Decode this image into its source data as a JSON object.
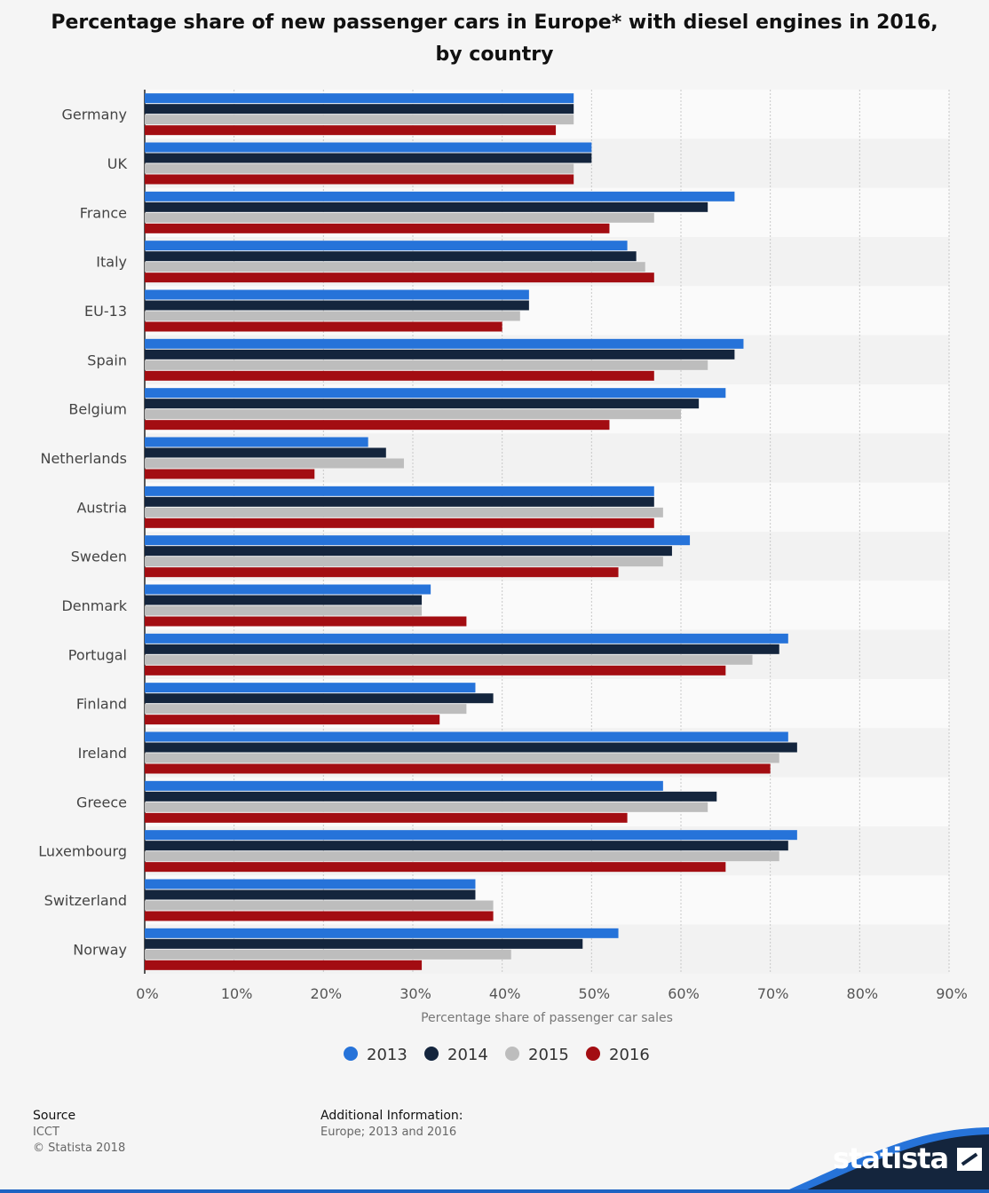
{
  "chart_data": {
    "type": "bar",
    "orientation": "horizontal",
    "title": "Percentage share of new passenger cars in Europe* with diesel engines in 2016, by country",
    "title_lines": [
      "Percentage share of new passenger cars in Europe* with diesel engines in 2016,",
      "by country"
    ],
    "xlabel": "Percentage share of passenger car sales",
    "ylabel": "",
    "xlim": [
      0,
      90
    ],
    "x_ticks": [
      "0%",
      "10%",
      "20%",
      "30%",
      "40%",
      "50%",
      "60%",
      "70%",
      "80%",
      "90%"
    ],
    "categories": [
      "Germany",
      "UK",
      "France",
      "Italy",
      "EU-13",
      "Spain",
      "Belgium",
      "Netherlands",
      "Austria",
      "Sweden",
      "Denmark",
      "Portugal",
      "Finland",
      "Ireland",
      "Greece",
      "Luxembourg",
      "Switzerland",
      "Norway"
    ],
    "series": [
      {
        "name": "2013",
        "color": "#2673d9",
        "values": [
          48,
          50,
          66,
          54,
          43,
          67,
          65,
          25,
          57,
          61,
          32,
          72,
          37,
          72,
          58,
          73,
          37,
          53
        ]
      },
      {
        "name": "2014",
        "color": "#14253d",
        "values": [
          48,
          50,
          63,
          55,
          43,
          66,
          62,
          27,
          57,
          59,
          31,
          71,
          39,
          73,
          64,
          72,
          37,
          49
        ]
      },
      {
        "name": "2015",
        "color": "#bdbdbd",
        "values": [
          48,
          48,
          57,
          56,
          42,
          63,
          60,
          29,
          58,
          58,
          31,
          68,
          36,
          71,
          63,
          71,
          39,
          41
        ]
      },
      {
        "name": "2016",
        "color": "#a30d12",
        "values": [
          46,
          48,
          52,
          57,
          40,
          57,
          52,
          19,
          57,
          53,
          36,
          65,
          33,
          70,
          54,
          65,
          39,
          31
        ]
      }
    ],
    "legend_position": "bottom-center",
    "grid": true
  },
  "footer": {
    "source_label": "Source",
    "source_lines": [
      "ICCT",
      "© Statista 2018"
    ],
    "info_label": "Additional Information:",
    "info_text": "Europe; 2013 and 2016"
  },
  "brand": {
    "name": "statista",
    "color": "#1e4f94"
  }
}
